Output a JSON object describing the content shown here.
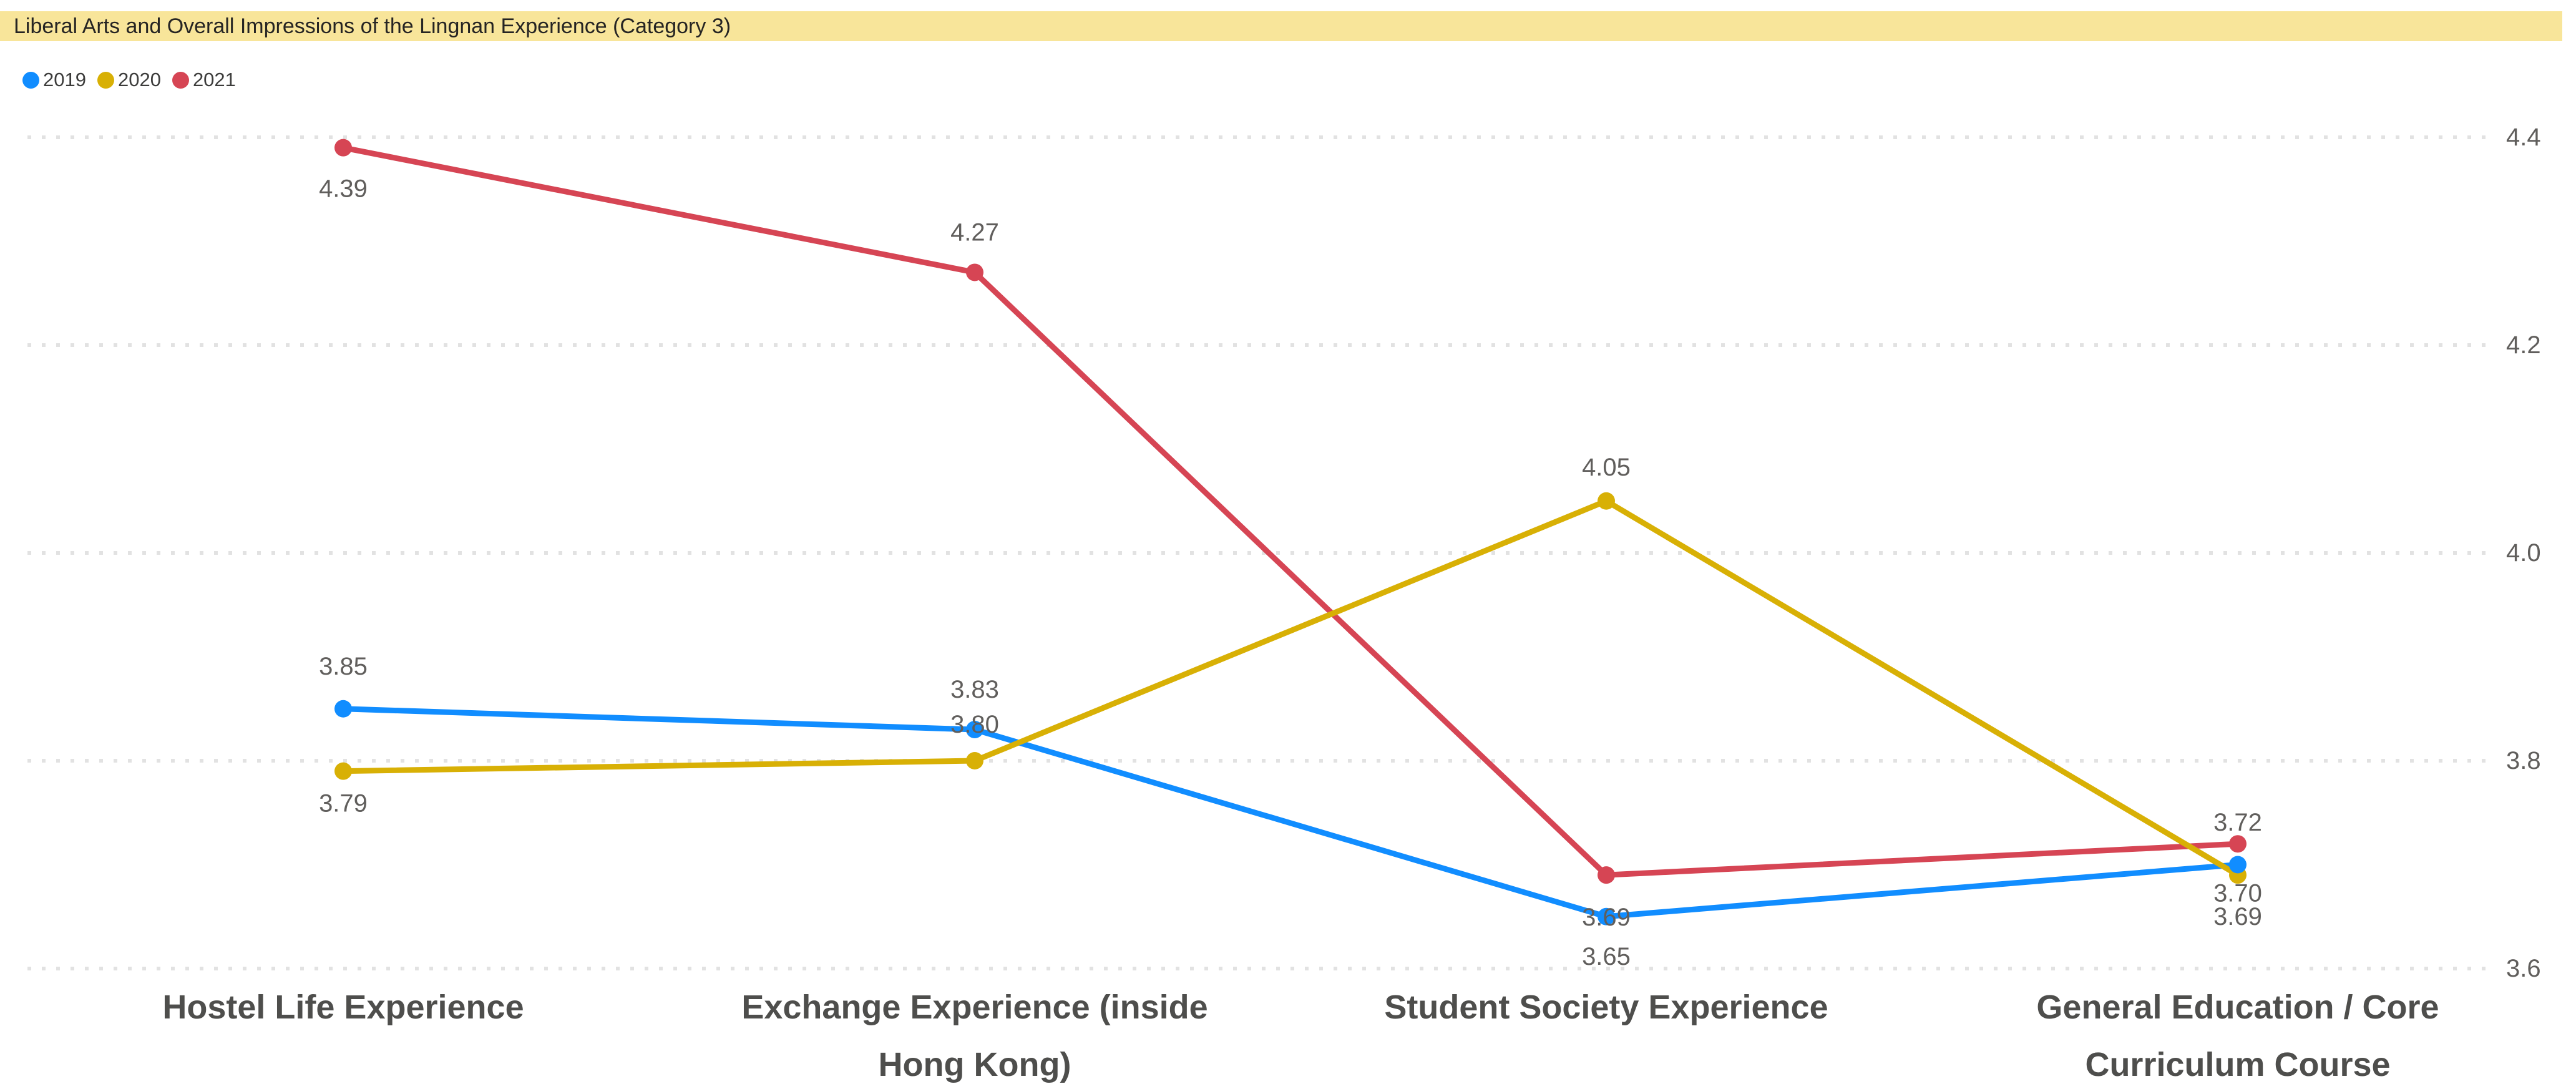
{
  "title_bar": {
    "text": "Liberal Arts and Overall Impressions of the Lingnan Experience (Category 3)",
    "background": "#F8E59A"
  },
  "legend": {
    "position": "top-left",
    "items": [
      {
        "label": "2019",
        "color": "#118DFF"
      },
      {
        "label": "2020",
        "color": "#D8B005"
      },
      {
        "label": "2021",
        "color": "#D64554"
      }
    ]
  },
  "chart_data": {
    "type": "line",
    "title": "Liberal Arts and Overall Impressions of the Lingnan Experience (Category 3)",
    "categories": [
      "Hostel Life Experience",
      "Exchange Experience (inside Hong Kong)",
      "Student Society Experience",
      "General Education / Core Curriculum Course"
    ],
    "category_lines": [
      [
        "Hostel Life Experience"
      ],
      [
        "Exchange Experience (inside",
        "Hong Kong)"
      ],
      [
        "Student Society Experience"
      ],
      [
        "General Education / Core",
        "Curriculum Course"
      ]
    ],
    "series": [
      {
        "name": "2019",
        "color": "#118DFF",
        "values": [
          3.85,
          3.83,
          3.65,
          3.7
        ],
        "labels": [
          "3.85",
          "3.83",
          "3.65",
          "3.70"
        ],
        "label_dy": [
          -68,
          -64,
          64,
          46
        ]
      },
      {
        "name": "2020",
        "color": "#D8B005",
        "values": [
          3.79,
          3.8,
          4.05,
          3.69
        ],
        "labels": [
          "3.79",
          "3.80",
          "4.05",
          "3.69"
        ],
        "label_dy": [
          52,
          -58,
          -54,
          67
        ]
      },
      {
        "name": "2021",
        "color": "#D64554",
        "values": [
          4.39,
          4.27,
          3.69,
          3.72
        ],
        "labels": [
          "4.39",
          "4.27",
          "3.69",
          "3.72"
        ],
        "label_dy": [
          66,
          -64,
          68,
          -34
        ]
      }
    ],
    "xlabel": "",
    "ylabel": "",
    "ylim": [
      3.6,
      4.4
    ],
    "yticks": [
      {
        "value": 3.6,
        "label": "3.6"
      },
      {
        "value": 3.8,
        "label": "3.8"
      },
      {
        "value": 4.0,
        "label": "4.0"
      },
      {
        "value": 4.2,
        "label": "4.2"
      },
      {
        "value": 4.4,
        "label": "4.4"
      }
    ],
    "y_axis_side": "right",
    "grid": "horizontal-dotted",
    "grid_color": "#E2E2E2",
    "data_label_color": "#605E5C",
    "axis_label_color": "#605E5C",
    "category_label_color": "#4E4E4C",
    "legend_position": "top-left"
  }
}
